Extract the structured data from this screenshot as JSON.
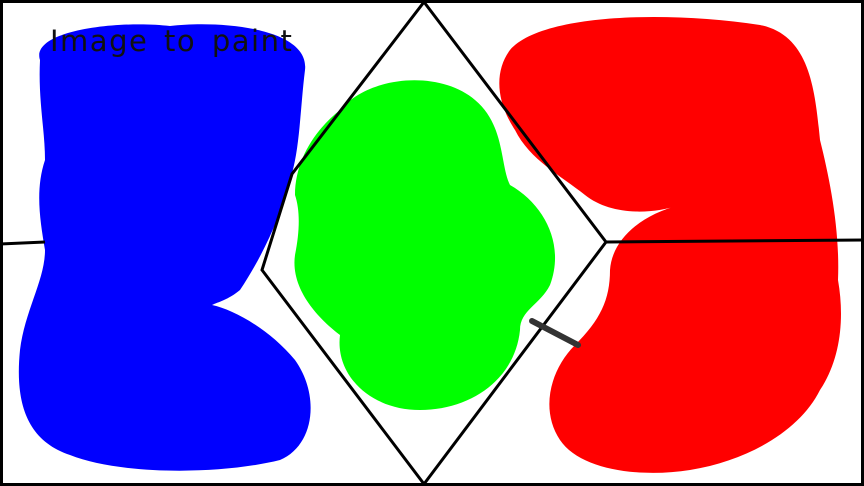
{
  "title": "Image to paint",
  "colors": {
    "background": "#ffffff",
    "outline": "#000000",
    "blue_paint": "#0000ff",
    "green_paint": "#00ff00",
    "red_paint": "#ff0000",
    "stray_mark": "#333333"
  },
  "regions": [
    {
      "name": "left-region",
      "paint": "blue"
    },
    {
      "name": "center-diamond",
      "paint": "green"
    },
    {
      "name": "right-region",
      "paint": "red"
    }
  ]
}
